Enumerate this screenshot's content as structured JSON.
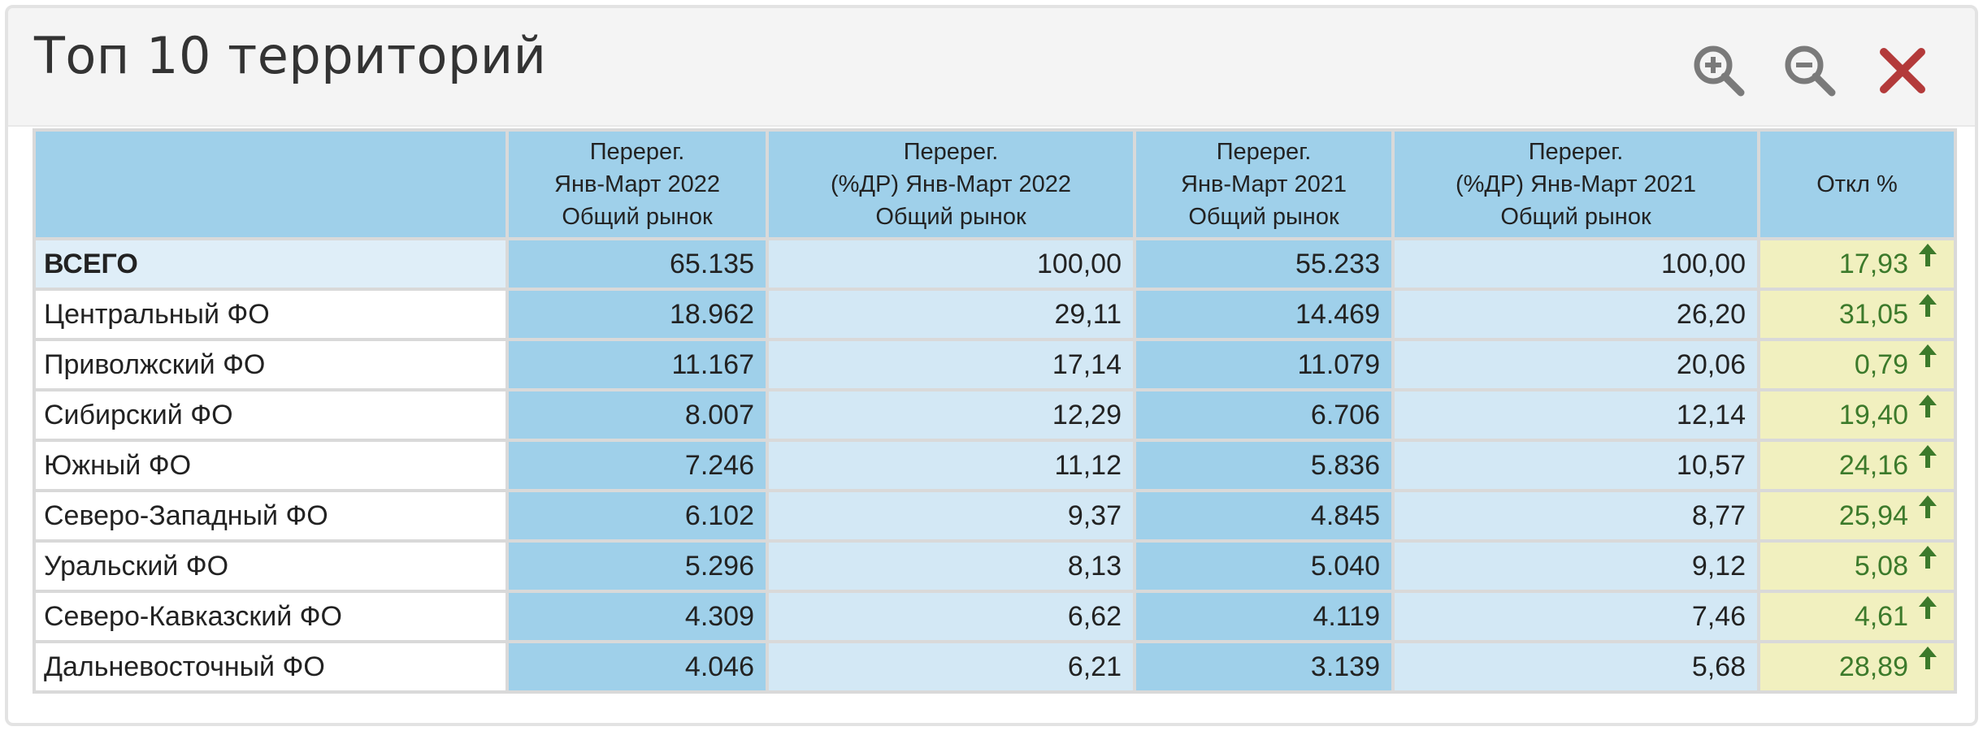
{
  "panel": {
    "title": "Топ 10 территорий",
    "tools": [
      {
        "name": "zoom-in",
        "icon": "zoom-in-icon"
      },
      {
        "name": "zoom-out",
        "icon": "zoom-out-icon"
      },
      {
        "name": "close",
        "icon": "close-icon"
      }
    ]
  },
  "colors": {
    "header_bg": "#9fd0ea",
    "dark_col": "#9fd0ea",
    "light_col": "#d3e8f5",
    "deviation_bg": "#f1f0bf",
    "deviation_text": "#3c7a2b",
    "close_icon": "#b33a3a"
  },
  "table": {
    "columns": [
      {
        "line1": "",
        "line2": "",
        "line3": ""
      },
      {
        "line1": "Перерег.",
        "line2": "Янв-Март 2022",
        "line3": "Общий рынок"
      },
      {
        "line1": "Перерег.",
        "line2": "(%ДР) Янв-Март 2022",
        "line3": "Общий рынок"
      },
      {
        "line1": "Перерег.",
        "line2": "Янв-Март 2021",
        "line3": "Общий рынок"
      },
      {
        "line1": "Перерег.",
        "line2": "(%ДР) Янв-Март 2021",
        "line3": "Общий рынок"
      },
      {
        "line1": "Откл %",
        "line2": "",
        "line3": ""
      }
    ],
    "rows": [
      {
        "name": "ВСЕГО",
        "v2022": "65.135",
        "p2022": "100,00",
        "v2021": "55.233",
        "p2021": "100,00",
        "dev": "17,93",
        "trend": "up-arrow-icon"
      },
      {
        "name": "Центральный ФО",
        "v2022": "18.962",
        "p2022": "29,11",
        "v2021": "14.469",
        "p2021": "26,20",
        "dev": "31,05",
        "trend": "up-arrow-icon"
      },
      {
        "name": "Приволжский ФО",
        "v2022": "11.167",
        "p2022": "17,14",
        "v2021": "11.079",
        "p2021": "20,06",
        "dev": "0,79",
        "trend": "up-arrow-icon"
      },
      {
        "name": "Сибирский ФО",
        "v2022": "8.007",
        "p2022": "12,29",
        "v2021": "6.706",
        "p2021": "12,14",
        "dev": "19,40",
        "trend": "up-arrow-icon"
      },
      {
        "name": "Южный ФО",
        "v2022": "7.246",
        "p2022": "11,12",
        "v2021": "5.836",
        "p2021": "10,57",
        "dev": "24,16",
        "trend": "up-arrow-icon"
      },
      {
        "name": "Северо-Западный ФО",
        "v2022": "6.102",
        "p2022": "9,37",
        "v2021": "4.845",
        "p2021": "8,77",
        "dev": "25,94",
        "trend": "up-arrow-icon"
      },
      {
        "name": "Уральский ФО",
        "v2022": "5.296",
        "p2022": "8,13",
        "v2021": "5.040",
        "p2021": "9,12",
        "dev": "5,08",
        "trend": "up-arrow-icon"
      },
      {
        "name": "Северо-Кавказский ФО",
        "v2022": "4.309",
        "p2022": "6,62",
        "v2021": "4.119",
        "p2021": "7,46",
        "dev": "4,61",
        "trend": "up-arrow-icon"
      },
      {
        "name": "Дальневосточный ФО",
        "v2022": "4.046",
        "p2022": "6,21",
        "v2021": "3.139",
        "p2021": "5,68",
        "dev": "28,89",
        "trend": "up-arrow-icon"
      }
    ]
  }
}
